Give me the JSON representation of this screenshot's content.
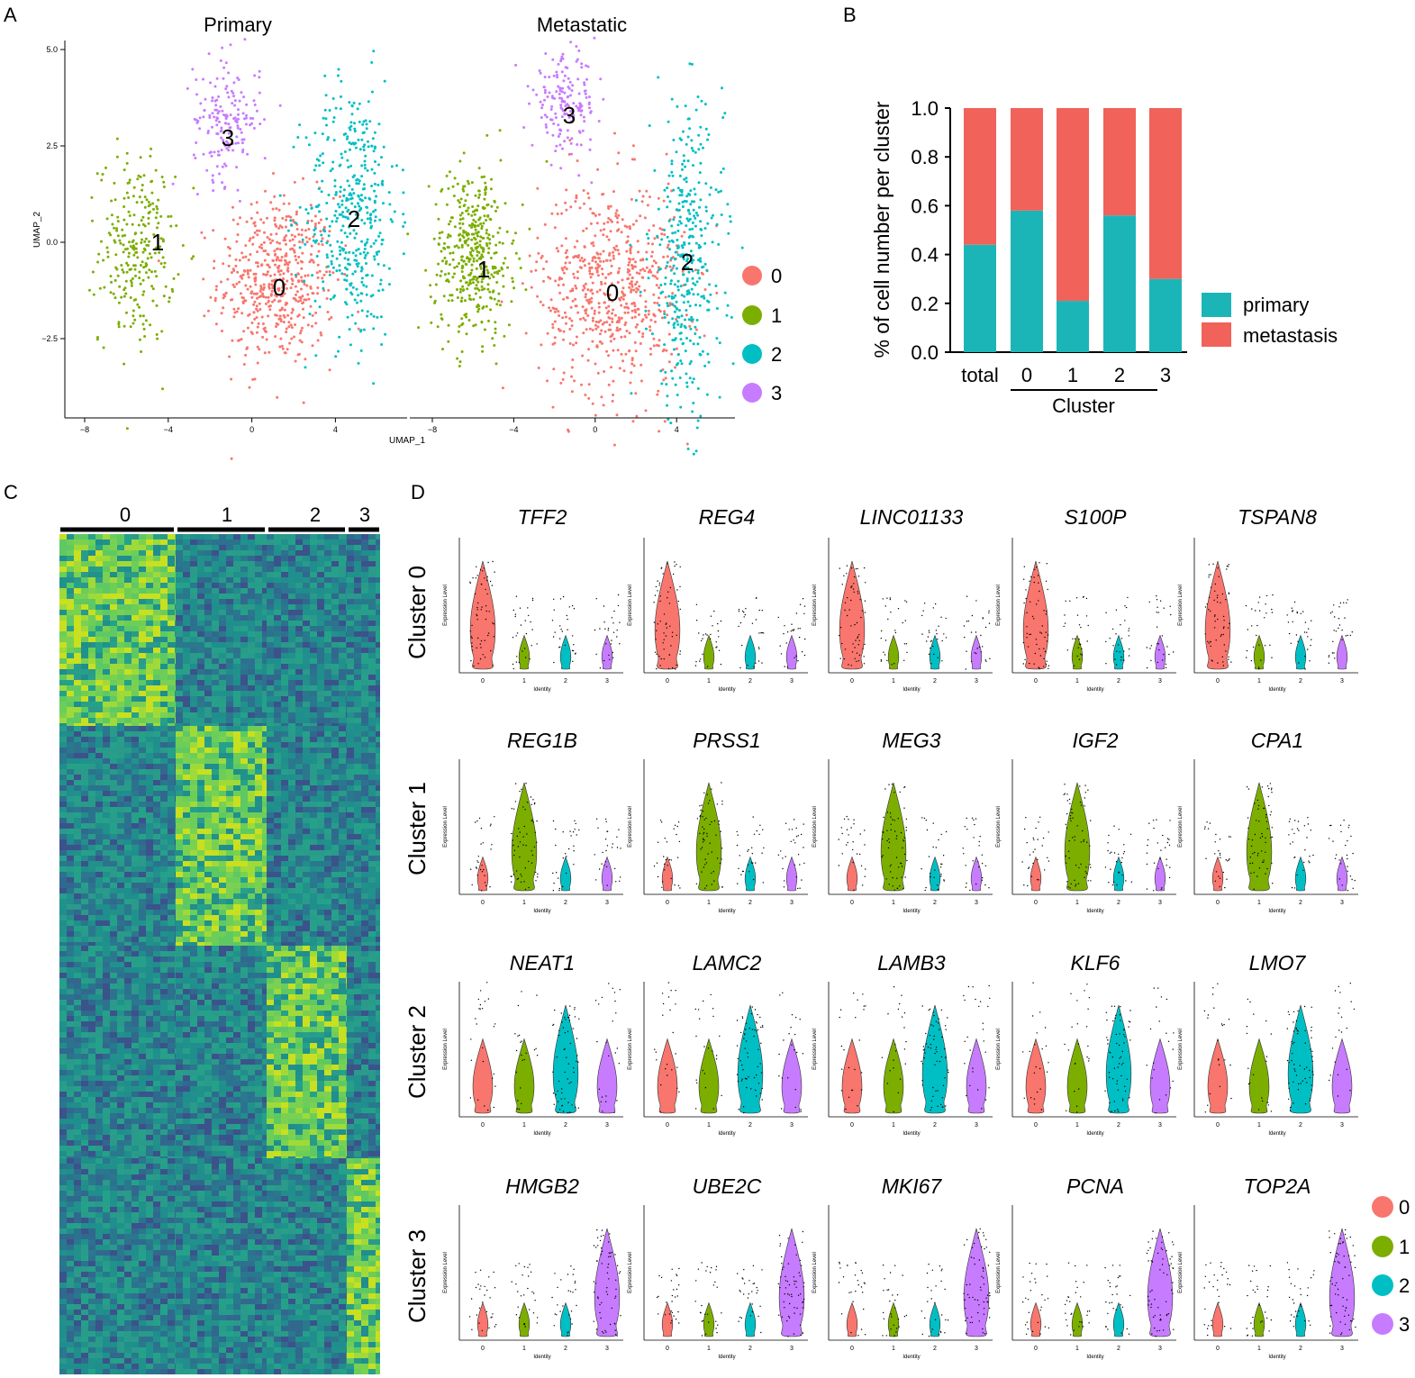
{
  "colors": {
    "c0": "#F8766D",
    "c1": "#7CAE00",
    "c2": "#00BFC4",
    "c3": "#C77CFF",
    "primary": "#1BB5B8",
    "metastasis": "#F0625A"
  },
  "panels": {
    "a": "A",
    "b": "B",
    "c": "C",
    "d": "D"
  },
  "umap": {
    "primary_title": "Primary",
    "metastatic_title": "Metastatic",
    "xlabel": "UMAP_1",
    "ylabel": "UMAP_2",
    "x_ticks": [
      "−8",
      "−4",
      "0",
      "4"
    ],
    "y_ticks": [
      "5.0",
      "2.5",
      "0.0",
      "−2.5"
    ],
    "clusters": [
      "0",
      "1",
      "2",
      "3"
    ]
  },
  "heatmap": {
    "labels": [
      "0",
      "1",
      "2",
      "3"
    ]
  },
  "violin": {
    "row_labels": [
      "Cluster 0",
      "Cluster 1",
      "Cluster 2",
      "Cluster 3"
    ],
    "y_axis_label": "Expression Level",
    "x_axis_label": "Identity",
    "identities": [
      "0",
      "1",
      "2",
      "3"
    ],
    "legend": [
      "0",
      "1",
      "2",
      "3"
    ],
    "genes": [
      [
        "TFF2",
        "REG4",
        "LINC01133",
        "S100P",
        "TSPAN8"
      ],
      [
        "REG1B",
        "PRSS1",
        "MEG3",
        "IGF2",
        "CPA1"
      ],
      [
        "NEAT1",
        "LAMC2",
        "LAMB3",
        "KLF6",
        "LMO7"
      ],
      [
        "HMGB2",
        "UBE2C",
        "MKI67",
        "PCNA",
        "TOP2A"
      ]
    ]
  },
  "chart_data": [
    {
      "type": "scatter",
      "title": "Primary",
      "xlabel": "UMAP_1",
      "ylabel": "UMAP_2",
      "xlim": [
        -9.5,
        7.5
      ],
      "ylim": [
        -4.5,
        5.2
      ],
      "series": [
        {
          "name": "0",
          "center": [
            1.2,
            -1.0
          ]
        },
        {
          "name": "1",
          "center": [
            -5.5,
            -0.2
          ]
        },
        {
          "name": "2",
          "center": [
            4.8,
            0.8
          ]
        },
        {
          "name": "3",
          "center": [
            -1.2,
            3.2
          ]
        }
      ]
    },
    {
      "type": "scatter",
      "title": "Metastatic",
      "xlabel": "UMAP_1",
      "ylabel": "UMAP_2",
      "xlim": [
        -9.5,
        7.5
      ],
      "ylim": [
        -4.5,
        5.2
      ],
      "series": [
        {
          "name": "0",
          "center": [
            0.8,
            -1.2
          ]
        },
        {
          "name": "1",
          "center": [
            -6.0,
            -0.3
          ]
        },
        {
          "name": "2",
          "center": [
            4.5,
            -0.5
          ]
        },
        {
          "name": "3",
          "center": [
            -1.5,
            3.6
          ]
        }
      ]
    },
    {
      "type": "bar",
      "stacked": true,
      "title": "",
      "xlabel": "Cluster",
      "ylabel": "% of cell number per cluster",
      "ylim": [
        0,
        1.0
      ],
      "y_ticks": [
        "0.0",
        "0.2",
        "0.4",
        "0.6",
        "0.8",
        "1.0"
      ],
      "categories": [
        "total",
        "0",
        "1",
        "2",
        "3"
      ],
      "series": [
        {
          "name": "primary",
          "values": [
            0.44,
            0.58,
            0.21,
            0.56,
            0.3
          ]
        },
        {
          "name": "metastasis",
          "values": [
            0.56,
            0.42,
            0.79,
            0.44,
            0.7
          ]
        }
      ]
    },
    {
      "type": "heatmap",
      "title": "",
      "column_groups": [
        "0",
        "1",
        "2",
        "3"
      ]
    }
  ]
}
